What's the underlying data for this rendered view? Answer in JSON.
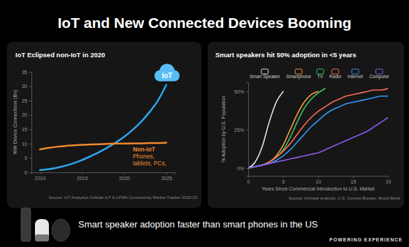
{
  "title": "IoT and New Connected Devices Booming",
  "caption": "Smart speaker adoption faster than smart phones in the US",
  "footer": "POWERING EXPERIENCE",
  "chart_data": [
    {
      "type": "line",
      "title": "IoT Eclipsed non-IoT in 2020",
      "ylabel": "WW Device Connections (Bn)",
      "source": "Source: IoT Analytics-Cellular IoT & LPWA Connectivity Market Tracker 2010-25",
      "x": [
        2010,
        2011,
        2012,
        2013,
        2014,
        2015,
        2016,
        2017,
        2018,
        2019,
        2020,
        2021,
        2022,
        2023,
        2024,
        2025
      ],
      "xlim": [
        2009,
        2026
      ],
      "xticks": [
        2010,
        2015,
        2020,
        2025
      ],
      "ylim": [
        0,
        35
      ],
      "yticks": [
        0,
        5,
        10,
        15,
        20,
        25,
        30,
        35
      ],
      "series": [
        {
          "name": "IoT",
          "color": "#2ea6f2",
          "values": [
            0.8,
            1.1,
            1.6,
            2.3,
            3.2,
            4.3,
            5.6,
            7.0,
            8.6,
            10.4,
            12.4,
            14.8,
            17.6,
            21.0,
            25.0,
            30.5
          ]
        },
        {
          "name": "Non-IoT",
          "color": "#f28a2e",
          "values": [
            8.0,
            8.5,
            8.9,
            9.2,
            9.4,
            9.6,
            9.7,
            9.8,
            9.9,
            10.0,
            10.0,
            10.1,
            10.1,
            10.2,
            10.2,
            10.3
          ]
        }
      ],
      "annotations": [
        "Phones,",
        "tablets, PCs,"
      ]
    },
    {
      "type": "line",
      "title": "Smart speakers hit 50% adoption in <5 years",
      "xlabel": "Years Since Commercial Introduction to U.S. Market",
      "ylabel": "% Adoption by U.S. Population",
      "source": "Source: Activate analysis, U.S. Census Bureau, World Bank",
      "x": [
        0,
        1,
        2,
        3,
        4,
        5,
        6,
        7,
        8,
        9,
        10,
        11,
        12,
        13,
        14,
        15,
        16,
        17,
        18,
        19,
        20
      ],
      "xlim": [
        0,
        20
      ],
      "xticks": [
        0,
        5,
        10,
        15,
        20
      ],
      "ylim": [
        -5,
        56
      ],
      "yticks": [
        {
          "value": 0,
          "label": "0%"
        },
        {
          "value": 25,
          "label": "25%"
        },
        {
          "value": 50,
          "label": "50%"
        }
      ],
      "legend": "top",
      "series": [
        {
          "name": "Smart Speaker",
          "color": "#e6e6e6",
          "values": [
            0,
            4,
            14,
            30,
            43,
            50,
            null,
            null,
            null,
            null,
            null,
            null,
            null,
            null,
            null,
            null,
            null,
            null,
            null,
            null,
            null
          ]
        },
        {
          "name": "Smartphone",
          "color": "#ff9a3c",
          "values": [
            0,
            1,
            2,
            4,
            8,
            15,
            25,
            35,
            43,
            48,
            50,
            null,
            null,
            null,
            null,
            null,
            null,
            null,
            null,
            null,
            null
          ]
        },
        {
          "name": "TV",
          "color": "#3cc46a",
          "values": [
            0,
            1,
            2,
            4,
            7,
            12,
            20,
            30,
            39,
            45,
            49,
            52,
            null,
            null,
            null,
            null,
            null,
            null,
            null,
            null,
            null
          ]
        },
        {
          "name": "Radio",
          "color": "#ff6b57",
          "values": [
            0,
            1,
            2,
            4,
            7,
            11,
            16,
            22,
            28,
            33,
            37,
            40,
            43,
            45,
            47,
            48,
            49,
            50,
            51,
            51,
            52
          ]
        },
        {
          "name": "Internet",
          "color": "#2f9bff",
          "values": [
            0,
            1,
            2,
            3,
            5,
            8,
            12,
            17,
            22,
            27,
            31,
            35,
            38,
            40,
            42,
            43,
            44,
            45,
            46,
            47,
            47
          ]
        },
        {
          "name": "Computer",
          "color": "#8a5cf0",
          "values": [
            0,
            1,
            2,
            3,
            4,
            5,
            6,
            7,
            8,
            9,
            10,
            12,
            14,
            16,
            18,
            20,
            22,
            24,
            27,
            30,
            33
          ]
        }
      ]
    }
  ]
}
